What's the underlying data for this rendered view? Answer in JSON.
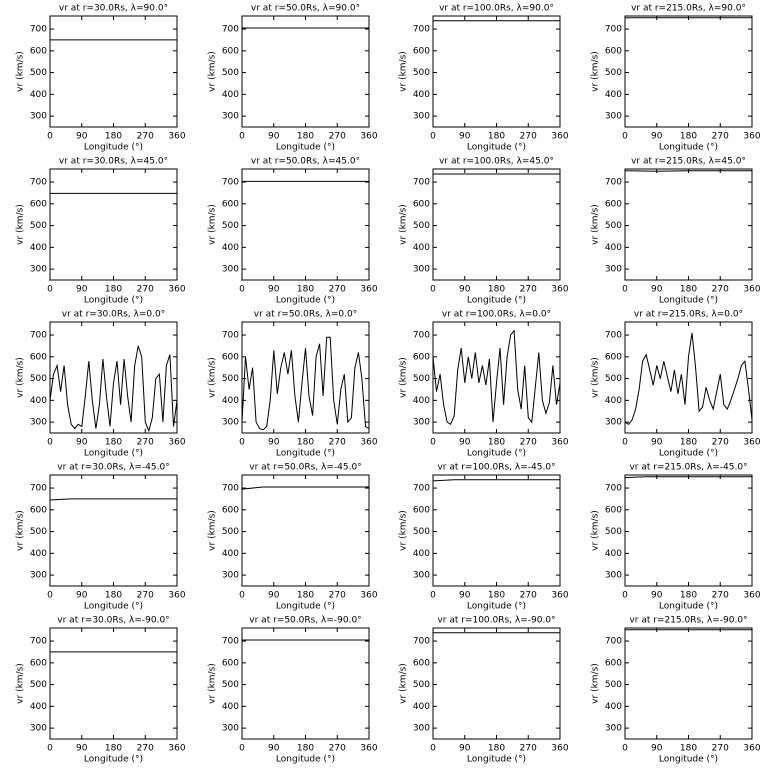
{
  "chart_data": [
    {
      "type": "line",
      "title": "vr at r=30.0Rs, λ=90.0°",
      "x_label": "Longitude (°)",
      "y_label": "vr (km/s)",
      "xlim": [
        0,
        360
      ],
      "ylim": [
        250,
        760
      ],
      "xticks": [
        0,
        90,
        180,
        270,
        360
      ],
      "yticks": [
        300,
        400,
        500,
        600,
        700
      ],
      "series": [
        {
          "color": "#000000",
          "x": [
            0,
            360
          ],
          "values": [
            650,
            650
          ]
        }
      ]
    },
    {
      "type": "line",
      "title": "vr at r=50.0Rs, λ=90.0°",
      "x_label": "Longitude (°)",
      "y_label": "vr (km/s)",
      "xlim": [
        0,
        360
      ],
      "ylim": [
        250,
        760
      ],
      "xticks": [
        0,
        90,
        180,
        270,
        360
      ],
      "yticks": [
        300,
        400,
        500,
        600,
        700
      ],
      "series": [
        {
          "color": "#000000",
          "x": [
            0,
            360
          ],
          "values": [
            705,
            705
          ]
        }
      ]
    },
    {
      "type": "line",
      "title": "vr at r=100.0Rs, λ=90.0°",
      "x_label": "Longitude (°)",
      "y_label": "vr (km/s)",
      "xlim": [
        0,
        360
      ],
      "ylim": [
        250,
        760
      ],
      "xticks": [
        0,
        90,
        180,
        270,
        360
      ],
      "yticks": [
        300,
        400,
        500,
        600,
        700
      ],
      "series": [
        {
          "color": "#000000",
          "x": [
            0,
            360
          ],
          "values": [
            738,
            738
          ]
        }
      ]
    },
    {
      "type": "line",
      "title": "vr at r=215.0Rs, λ=90.0°",
      "x_label": "Longitude (°)",
      "y_label": "vr (km/s)",
      "xlim": [
        0,
        360
      ],
      "ylim": [
        250,
        760
      ],
      "xticks": [
        0,
        90,
        180,
        270,
        360
      ],
      "yticks": [
        300,
        400,
        500,
        600,
        700
      ],
      "series": [
        {
          "color": "#000000",
          "x": [
            0,
            360
          ],
          "values": [
            752,
            752
          ]
        }
      ]
    },
    {
      "type": "line",
      "title": "vr at r=30.0Rs, λ=45.0°",
      "x_label": "Longitude (°)",
      "y_label": "vr (km/s)",
      "xlim": [
        0,
        360
      ],
      "ylim": [
        250,
        760
      ],
      "xticks": [
        0,
        90,
        180,
        270,
        360
      ],
      "yticks": [
        300,
        400,
        500,
        600,
        700
      ],
      "series": [
        {
          "color": "#000000",
          "x": [
            0,
            360
          ],
          "values": [
            648,
            648
          ]
        }
      ]
    },
    {
      "type": "line",
      "title": "vr at r=50.0Rs, λ=45.0°",
      "x_label": "Longitude (°)",
      "y_label": "vr (km/s)",
      "xlim": [
        0,
        360
      ],
      "ylim": [
        250,
        760
      ],
      "xticks": [
        0,
        90,
        180,
        270,
        360
      ],
      "yticks": [
        300,
        400,
        500,
        600,
        700
      ],
      "series": [
        {
          "color": "#000000",
          "x": [
            0,
            360
          ],
          "values": [
            703,
            703
          ]
        }
      ]
    },
    {
      "type": "line",
      "title": "vr at r=100.0Rs, λ=45.0°",
      "x_label": "Longitude (°)",
      "y_label": "vr (km/s)",
      "xlim": [
        0,
        360
      ],
      "ylim": [
        250,
        760
      ],
      "xticks": [
        0,
        90,
        180,
        270,
        360
      ],
      "yticks": [
        300,
        400,
        500,
        600,
        700
      ],
      "series": [
        {
          "color": "#000000",
          "x": [
            0,
            360
          ],
          "values": [
            737,
            737
          ]
        }
      ]
    },
    {
      "type": "line",
      "title": "vr at r=215.0Rs, λ=45.0°",
      "x_label": "Longitude (°)",
      "y_label": "vr (km/s)",
      "xlim": [
        0,
        360
      ],
      "ylim": [
        250,
        760
      ],
      "xticks": [
        0,
        90,
        180,
        270,
        360
      ],
      "yticks": [
        300,
        400,
        500,
        600,
        700
      ],
      "series": [
        {
          "color": "#000000",
          "x": [
            0,
            90,
            180,
            360
          ],
          "values": [
            752,
            750,
            752,
            752
          ]
        }
      ]
    },
    {
      "type": "line",
      "title": "vr at r=30.0Rs, λ=0.0°",
      "x_label": "Longitude (°)",
      "y_label": "vr (km/s)",
      "xlim": [
        0,
        360
      ],
      "ylim": [
        250,
        760
      ],
      "xticks": [
        0,
        90,
        180,
        270,
        360
      ],
      "yticks": [
        300,
        400,
        500,
        600,
        700
      ],
      "series": [
        {
          "color": "#000000",
          "x": [
            0,
            10,
            20,
            30,
            40,
            50,
            60,
            70,
            80,
            90,
            100,
            110,
            120,
            130,
            140,
            150,
            160,
            170,
            180,
            190,
            200,
            210,
            220,
            230,
            240,
            250,
            260,
            270,
            280,
            290,
            300,
            310,
            320,
            330,
            340,
            350,
            360
          ],
          "values": [
            400,
            520,
            560,
            440,
            560,
            380,
            290,
            270,
            290,
            280,
            420,
            580,
            400,
            270,
            380,
            590,
            420,
            280,
            480,
            580,
            380,
            590,
            420,
            300,
            560,
            650,
            600,
            300,
            260,
            320,
            500,
            520,
            300,
            560,
            610,
            280,
            400
          ]
        }
      ]
    },
    {
      "type": "line",
      "title": "vr at r=50.0Rs, λ=0.0°",
      "x_label": "Longitude (°)",
      "y_label": "vr (km/s)",
      "xlim": [
        0,
        360
      ],
      "ylim": [
        250,
        760
      ],
      "xticks": [
        0,
        90,
        180,
        270,
        360
      ],
      "yticks": [
        300,
        400,
        500,
        600,
        700
      ],
      "series": [
        {
          "color": "#000000",
          "x": [
            0,
            10,
            20,
            30,
            40,
            50,
            60,
            70,
            80,
            90,
            100,
            110,
            120,
            130,
            140,
            150,
            160,
            170,
            180,
            190,
            200,
            210,
            220,
            230,
            240,
            250,
            260,
            270,
            280,
            290,
            300,
            310,
            320,
            330,
            340,
            350,
            360
          ],
          "values": [
            300,
            600,
            450,
            550,
            300,
            270,
            265,
            280,
            400,
            630,
            430,
            550,
            620,
            520,
            630,
            420,
            300,
            480,
            640,
            420,
            330,
            600,
            660,
            420,
            690,
            690,
            400,
            290,
            450,
            520,
            300,
            320,
            550,
            620,
            500,
            280,
            270
          ]
        }
      ]
    },
    {
      "type": "line",
      "title": "vr at r=100.0Rs, λ=0.0°",
      "x_label": "Longitude (°)",
      "y_label": "vr (km/s)",
      "xlim": [
        0,
        360
      ],
      "ylim": [
        250,
        760
      ],
      "xticks": [
        0,
        90,
        180,
        270,
        360
      ],
      "yticks": [
        300,
        400,
        500,
        600,
        700
      ],
      "series": [
        {
          "color": "#000000",
          "x": [
            0,
            10,
            20,
            30,
            40,
            50,
            60,
            70,
            80,
            90,
            100,
            110,
            120,
            130,
            140,
            150,
            160,
            170,
            180,
            190,
            200,
            210,
            220,
            230,
            240,
            250,
            260,
            270,
            280,
            290,
            300,
            310,
            320,
            330,
            340,
            350,
            360
          ],
          "values": [
            600,
            440,
            520,
            380,
            300,
            290,
            330,
            540,
            640,
            480,
            600,
            500,
            620,
            480,
            560,
            470,
            590,
            300,
            480,
            640,
            380,
            600,
            700,
            720,
            450,
            360,
            560,
            320,
            300,
            460,
            620,
            400,
            340,
            390,
            560,
            380,
            480
          ]
        }
      ]
    },
    {
      "type": "line",
      "title": "vr at r=215.0Rs, λ=0.0°",
      "x_label": "Longitude (°)",
      "y_label": "vr (km/s)",
      "xlim": [
        0,
        360
      ],
      "ylim": [
        250,
        760
      ],
      "xticks": [
        0,
        90,
        180,
        270,
        360
      ],
      "yticks": [
        300,
        400,
        500,
        600,
        700
      ],
      "series": [
        {
          "color": "#000000",
          "x": [
            0,
            10,
            20,
            30,
            40,
            50,
            60,
            70,
            80,
            90,
            100,
            110,
            120,
            130,
            140,
            150,
            160,
            170,
            180,
            190,
            200,
            210,
            220,
            230,
            240,
            250,
            260,
            270,
            280,
            290,
            300,
            310,
            320,
            330,
            340,
            350,
            360
          ],
          "values": [
            300,
            290,
            310,
            360,
            450,
            580,
            610,
            540,
            470,
            560,
            500,
            580,
            510,
            440,
            540,
            430,
            520,
            380,
            600,
            710,
            550,
            350,
            370,
            460,
            400,
            360,
            440,
            520,
            380,
            360,
            400,
            450,
            500,
            560,
            580,
            450,
            310
          ]
        }
      ]
    },
    {
      "type": "line",
      "title": "vr at r=30.0Rs, λ=-45.0°",
      "x_label": "Longitude (°)",
      "y_label": "vr (km/s)",
      "xlim": [
        0,
        360
      ],
      "ylim": [
        250,
        760
      ],
      "xticks": [
        0,
        90,
        180,
        270,
        360
      ],
      "yticks": [
        300,
        400,
        500,
        600,
        700
      ],
      "series": [
        {
          "color": "#000000",
          "x": [
            0,
            60,
            360
          ],
          "values": [
            645,
            650,
            650
          ]
        }
      ]
    },
    {
      "type": "line",
      "title": "vr at r=50.0Rs, λ=-45.0°",
      "x_label": "Longitude (°)",
      "y_label": "vr (km/s)",
      "xlim": [
        0,
        360
      ],
      "ylim": [
        250,
        760
      ],
      "xticks": [
        0,
        90,
        180,
        270,
        360
      ],
      "yticks": [
        300,
        400,
        500,
        600,
        700
      ],
      "series": [
        {
          "color": "#000000",
          "x": [
            0,
            60,
            360
          ],
          "values": [
            695,
            705,
            705
          ]
        }
      ]
    },
    {
      "type": "line",
      "title": "vr at r=100.0Rs, λ=-45.0°",
      "x_label": "Longitude (°)",
      "y_label": "vr (km/s)",
      "xlim": [
        0,
        360
      ],
      "ylim": [
        250,
        760
      ],
      "xticks": [
        0,
        90,
        180,
        270,
        360
      ],
      "yticks": [
        300,
        400,
        500,
        600,
        700
      ],
      "series": [
        {
          "color": "#000000",
          "x": [
            0,
            60,
            360
          ],
          "values": [
            733,
            738,
            738
          ]
        }
      ]
    },
    {
      "type": "line",
      "title": "vr at r=215.0Rs, λ=-45.0°",
      "x_label": "Longitude (°)",
      "y_label": "vr (km/s)",
      "xlim": [
        0,
        360
      ],
      "ylim": [
        250,
        760
      ],
      "xticks": [
        0,
        90,
        180,
        270,
        360
      ],
      "yticks": [
        300,
        400,
        500,
        600,
        700
      ],
      "series": [
        {
          "color": "#000000",
          "x": [
            0,
            60,
            360
          ],
          "values": [
            748,
            752,
            752
          ]
        }
      ]
    },
    {
      "type": "line",
      "title": "vr at r=30.0Rs, λ=-90.0°",
      "x_label": "Longitude (°)",
      "y_label": "vr (km/s)",
      "xlim": [
        0,
        360
      ],
      "ylim": [
        250,
        760
      ],
      "xticks": [
        0,
        90,
        180,
        270,
        360
      ],
      "yticks": [
        300,
        400,
        500,
        600,
        700
      ],
      "series": [
        {
          "color": "#000000",
          "x": [
            0,
            360
          ],
          "values": [
            650,
            650
          ]
        }
      ]
    },
    {
      "type": "line",
      "title": "vr at r=50.0Rs, λ=-90.0°",
      "x_label": "Longitude (°)",
      "y_label": "vr (km/s)",
      "xlim": [
        0,
        360
      ],
      "ylim": [
        250,
        760
      ],
      "xticks": [
        0,
        90,
        180,
        270,
        360
      ],
      "yticks": [
        300,
        400,
        500,
        600,
        700
      ],
      "series": [
        {
          "color": "#000000",
          "x": [
            0,
            360
          ],
          "values": [
            705,
            705
          ]
        }
      ]
    },
    {
      "type": "line",
      "title": "vr at r=100.0Rs, λ=-90.0°",
      "x_label": "Longitude (°)",
      "y_label": "vr (km/s)",
      "xlim": [
        0,
        360
      ],
      "ylim": [
        250,
        760
      ],
      "xticks": [
        0,
        90,
        180,
        270,
        360
      ],
      "yticks": [
        300,
        400,
        500,
        600,
        700
      ],
      "series": [
        {
          "color": "#000000",
          "x": [
            0,
            360
          ],
          "values": [
            738,
            738
          ]
        }
      ]
    },
    {
      "type": "line",
      "title": "vr at r=215.0Rs, λ=-90.0°",
      "x_label": "Longitude (°)",
      "y_label": "vr (km/s)",
      "xlim": [
        0,
        360
      ],
      "ylim": [
        250,
        760
      ],
      "xticks": [
        0,
        90,
        180,
        270,
        360
      ],
      "yticks": [
        300,
        400,
        500,
        600,
        700
      ],
      "series": [
        {
          "color": "#000000",
          "x": [
            0,
            360
          ],
          "values": [
            752,
            752
          ]
        }
      ]
    }
  ]
}
